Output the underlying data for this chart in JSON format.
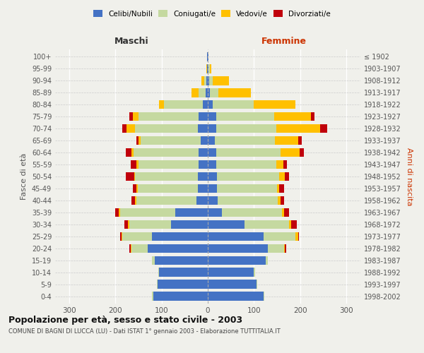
{
  "age_groups": [
    "0-4",
    "5-9",
    "10-14",
    "15-19",
    "20-24",
    "25-29",
    "30-34",
    "35-39",
    "40-44",
    "45-49",
    "50-54",
    "55-59",
    "60-64",
    "65-69",
    "70-74",
    "75-79",
    "80-84",
    "85-89",
    "90-94",
    "95-99",
    "100+"
  ],
  "birth_years": [
    "1998-2002",
    "1993-1997",
    "1988-1992",
    "1983-1987",
    "1978-1982",
    "1973-1977",
    "1968-1972",
    "1963-1967",
    "1958-1962",
    "1953-1957",
    "1948-1952",
    "1943-1947",
    "1938-1942",
    "1933-1937",
    "1928-1932",
    "1923-1927",
    "1918-1922",
    "1913-1917",
    "1908-1912",
    "1903-1907",
    "≤ 1902"
  ],
  "maschi": {
    "celibi": [
      118,
      108,
      105,
      115,
      130,
      120,
      80,
      70,
      25,
      22,
      22,
      20,
      20,
      15,
      22,
      20,
      10,
      5,
      3,
      1,
      1
    ],
    "coniugati": [
      2,
      2,
      2,
      5,
      35,
      65,
      90,
      120,
      130,
      130,
      135,
      130,
      140,
      130,
      135,
      130,
      85,
      15,
      5,
      1,
      0
    ],
    "vedovi": [
      0,
      0,
      0,
      0,
      2,
      2,
      2,
      2,
      2,
      2,
      2,
      5,
      5,
      5,
      18,
      12,
      10,
      15,
      5,
      1,
      0
    ],
    "divorziati": [
      0,
      0,
      0,
      0,
      2,
      2,
      8,
      8,
      8,
      8,
      18,
      12,
      12,
      5,
      10,
      8,
      0,
      0,
      0,
      0,
      0
    ]
  },
  "femmine": {
    "nubili": [
      120,
      105,
      100,
      125,
      130,
      120,
      80,
      30,
      22,
      20,
      20,
      18,
      18,
      15,
      18,
      18,
      10,
      5,
      3,
      2,
      1
    ],
    "coniugate": [
      2,
      2,
      2,
      5,
      35,
      70,
      95,
      130,
      130,
      130,
      135,
      130,
      140,
      130,
      130,
      125,
      90,
      18,
      8,
      2,
      0
    ],
    "vedove": [
      0,
      0,
      0,
      0,
      2,
      5,
      5,
      5,
      5,
      5,
      12,
      15,
      40,
      50,
      95,
      80,
      90,
      70,
      35,
      3,
      0
    ],
    "divorziate": [
      0,
      0,
      0,
      0,
      2,
      2,
      12,
      10,
      8,
      10,
      8,
      8,
      10,
      8,
      15,
      8,
      0,
      0,
      0,
      0,
      0
    ]
  },
  "colors": {
    "celibi": "#4472c4",
    "coniugati": "#c5d9a0",
    "vedovi": "#ffc000",
    "divorziati": "#c0000b"
  },
  "xlim": 330,
  "title": "Popolazione per età, sesso e stato civile - 2003",
  "subtitle": "COMUNE DI BAGNI DI LUCCA (LU) - Dati ISTAT 1° gennaio 2003 - Elaborazione TUTTITALIA.IT",
  "ylabel_left": "Fasce di età",
  "ylabel_right": "Anni di nascita",
  "xlabel_maschi": "Maschi",
  "xlabel_femmine": "Femmine",
  "legend_labels": [
    "Celibi/Nubili",
    "Coniugati/e",
    "Vedovi/e",
    "Divorziati/e"
  ],
  "bg_color": "#f0f0eb",
  "bar_height": 0.75
}
